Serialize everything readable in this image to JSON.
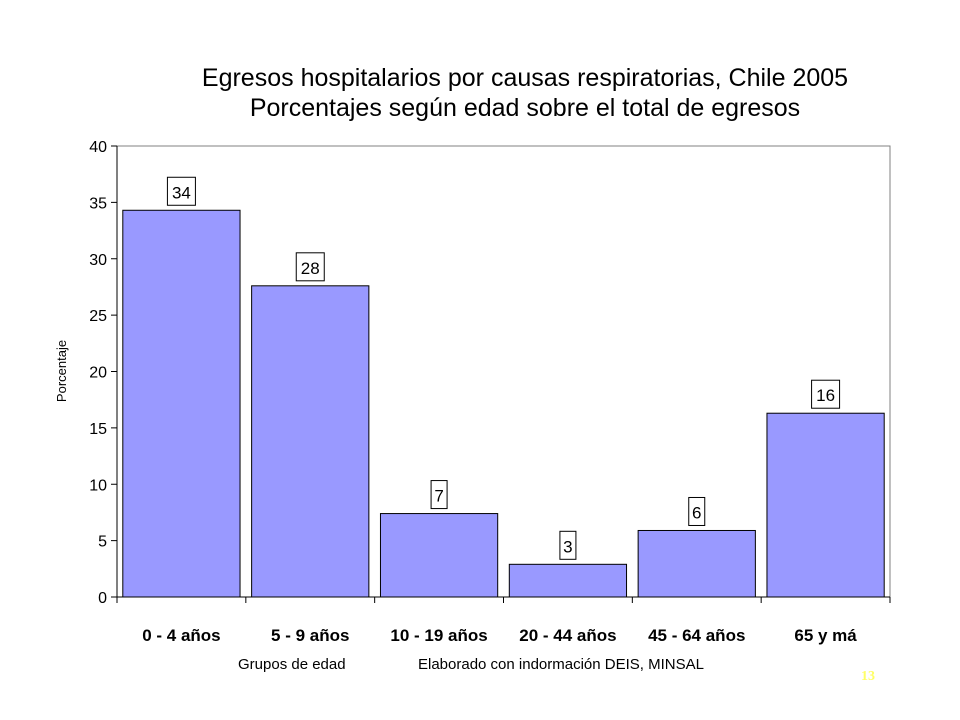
{
  "chart_data": {
    "type": "bar",
    "title": "Egresos hospitalarios por causas respiratorias, Chile 2005",
    "subtitle": "Porcentajes según edad sobre el total de egresos",
    "xlabel": "Grupos de edad",
    "ylabel": "Porcentaje",
    "categories": [
      "0 - 4 años",
      "5 - 9 años",
      "10 - 19 años",
      "20 - 44 años",
      "45 - 64 años",
      "65 y má"
    ],
    "values": [
      34.3,
      27.6,
      7.4,
      2.9,
      5.9,
      16.3
    ],
    "data_labels": [
      "34",
      "28",
      "7",
      "3",
      "6",
      "16"
    ],
    "ylim": [
      0,
      40
    ],
    "yticks": [
      "0",
      "5",
      "10",
      "15",
      "20",
      "25",
      "30",
      "35",
      "40"
    ],
    "grid": false,
    "bar_color": "#9999ff",
    "note": "Elaborado con indormación DEIS, MINSAL"
  },
  "page_number": "13",
  "page_number_color": "#ffff66"
}
